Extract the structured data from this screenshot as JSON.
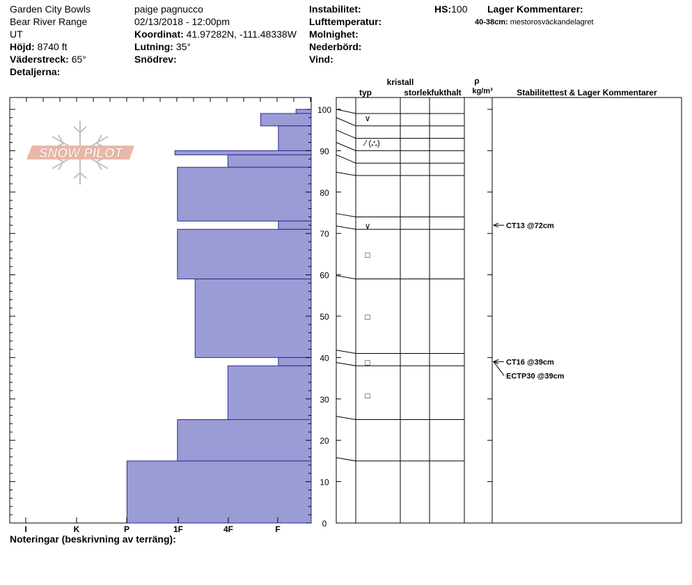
{
  "header": {
    "location": "Garden City Bowls",
    "range": "Bear River Range",
    "state": "UT",
    "elevation_label": "Höjd:",
    "elevation": "8740 ft",
    "aspect_label": "Väderstreck:",
    "aspect": "65°",
    "details_label": "Detaljerna:",
    "observer": "paige pagnucco",
    "datetime": "02/13/2018 - 12:00pm",
    "coord_label": "Koordinat:",
    "coord": "41.97282N, -111.48338W",
    "slope_label": "Lutning:",
    "slope": "35°",
    "drift_label": "Snödrev:",
    "instability_label": "Instabilitet:",
    "airtemp_label": "Lufttemperatur:",
    "cloud_label": "Molnighet:",
    "precip_label": "Nederbörd:",
    "wind_label": "Vind:",
    "hs_label": "HS:",
    "hs": "100",
    "layer_comments_label": "Lager Kommentarer:",
    "layer_comment_depth": "40-38cm:",
    "layer_comment_text": "mestorosväckandelagret"
  },
  "logo_text": "SNOW PILOT",
  "notes_label": "Noteringar (beskrivning av terräng):",
  "colors": {
    "bar": "#9b9bd6",
    "bar_stroke": "#2a2a8a",
    "logo": "#e8b8a8",
    "flake": "#b8c4cc"
  },
  "chart_data": {
    "type": "bar",
    "subtype": "snow-profile-hardness",
    "y_range": [
      0,
      100
    ],
    "y_ticks": [
      0,
      10,
      20,
      30,
      40,
      50,
      60,
      70,
      80,
      90,
      100
    ],
    "hardness_ticks": [
      "I",
      "K",
      "P",
      "1F",
      "4F",
      "F"
    ],
    "layers": [
      {
        "top": 100,
        "bottom": 99,
        "hardness": 0.3
      },
      {
        "top": 99,
        "bottom": 96,
        "hardness": 1.0
      },
      {
        "top": 96,
        "bottom": 90,
        "hardness": 0.65
      },
      {
        "top": 90,
        "bottom": 89,
        "hardness": 2.7
      },
      {
        "top": 89,
        "bottom": 86,
        "hardness": 1.65
      },
      {
        "top": 86,
        "bottom": 73,
        "hardness": 2.65
      },
      {
        "top": 73,
        "bottom": 71,
        "hardness": 0.65
      },
      {
        "top": 71,
        "bottom": 59,
        "hardness": 2.65
      },
      {
        "top": 59,
        "bottom": 40,
        "hardness": 2.3
      },
      {
        "top": 40,
        "bottom": 38,
        "hardness": 0.65
      },
      {
        "top": 38,
        "bottom": 25,
        "hardness": 1.65
      },
      {
        "top": 25,
        "bottom": 15,
        "hardness": 2.65
      },
      {
        "top": 15,
        "bottom": 0,
        "hardness": 3.65
      }
    ],
    "grain_header": {
      "crystal": "kristall",
      "type": "typ",
      "size": "storlek",
      "moisture": "fukthalt",
      "rho": "ρ",
      "density_unit": "kg/m³",
      "stability": "Stabilitettest & Lager Kommentarer"
    },
    "layer_boundaries": [
      99,
      96,
      93,
      90,
      87,
      84,
      74,
      71,
      59,
      41,
      38,
      25,
      15
    ],
    "grain_symbols": [
      {
        "depth": 98,
        "symbol": "∨"
      },
      {
        "depth": 92,
        "symbol": "⁄ (⛬)"
      },
      {
        "depth": 72,
        "symbol": "∨"
      },
      {
        "depth": 65,
        "symbol": "□"
      },
      {
        "depth": 50,
        "symbol": "□"
      },
      {
        "depth": 39,
        "symbol": "□"
      },
      {
        "depth": 31,
        "symbol": "□"
      }
    ],
    "tests": [
      {
        "depth": 72,
        "label": "CT13 @72cm"
      },
      {
        "depth": 39,
        "label": "CT16 @39cm"
      },
      {
        "depth": 39,
        "label": "ECTP30 @39cm"
      }
    ]
  }
}
